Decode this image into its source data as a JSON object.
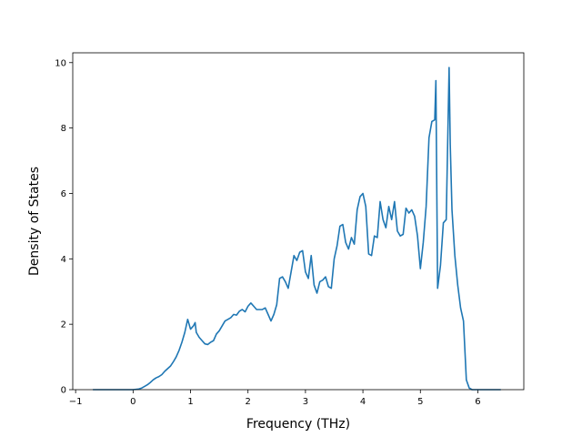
{
  "chart_data": {
    "type": "line",
    "title": "",
    "xlabel": "Frequency (THz)",
    "ylabel": "Density of States",
    "xlim": [
      -1.05,
      6.8
    ],
    "ylim": [
      0,
      10.3
    ],
    "xticks": [
      -1,
      0,
      1,
      2,
      3,
      4,
      5,
      6
    ],
    "yticks": [
      0,
      2,
      4,
      6,
      8,
      10
    ],
    "grid": false,
    "legend": "none",
    "line_color": "#1f77b4",
    "series": [
      {
        "name": "",
        "x": [
          -0.7,
          -0.5,
          -0.3,
          -0.1,
          0.0,
          0.1,
          0.15,
          0.2,
          0.25,
          0.3,
          0.35,
          0.4,
          0.45,
          0.5,
          0.55,
          0.6,
          0.65,
          0.7,
          0.75,
          0.8,
          0.85,
          0.9,
          0.95,
          1.0,
          1.05,
          1.08,
          1.1,
          1.15,
          1.2,
          1.25,
          1.3,
          1.35,
          1.4,
          1.45,
          1.5,
          1.55,
          1.6,
          1.65,
          1.7,
          1.75,
          1.8,
          1.85,
          1.9,
          1.95,
          2.0,
          2.05,
          2.1,
          2.15,
          2.2,
          2.25,
          2.3,
          2.35,
          2.4,
          2.45,
          2.5,
          2.55,
          2.6,
          2.65,
          2.7,
          2.75,
          2.8,
          2.85,
          2.9,
          2.95,
          3.0,
          3.05,
          3.1,
          3.15,
          3.2,
          3.25,
          3.3,
          3.35,
          3.4,
          3.45,
          3.5,
          3.55,
          3.6,
          3.65,
          3.7,
          3.75,
          3.8,
          3.85,
          3.9,
          3.95,
          4.0,
          4.05,
          4.1,
          4.15,
          4.2,
          4.25,
          4.3,
          4.35,
          4.4,
          4.45,
          4.5,
          4.55,
          4.6,
          4.65,
          4.7,
          4.75,
          4.8,
          4.85,
          4.9,
          4.95,
          5.0,
          5.05,
          5.1,
          5.15,
          5.2,
          5.25,
          5.27,
          5.3,
          5.35,
          5.4,
          5.45,
          5.5,
          5.52,
          5.55,
          5.6,
          5.65,
          5.7,
          5.75,
          5.8,
          5.85,
          5.9,
          6.0,
          6.2,
          6.4
        ],
        "values": [
          0.0,
          0.0,
          0.0,
          0.0,
          0.0,
          0.02,
          0.05,
          0.1,
          0.15,
          0.22,
          0.3,
          0.36,
          0.4,
          0.46,
          0.56,
          0.64,
          0.72,
          0.85,
          1.0,
          1.2,
          1.45,
          1.75,
          2.15,
          1.85,
          1.95,
          2.05,
          1.75,
          1.6,
          1.5,
          1.4,
          1.38,
          1.45,
          1.5,
          1.7,
          1.8,
          1.95,
          2.1,
          2.15,
          2.2,
          2.3,
          2.28,
          2.4,
          2.45,
          2.38,
          2.55,
          2.65,
          2.55,
          2.45,
          2.45,
          2.45,
          2.5,
          2.3,
          2.1,
          2.3,
          2.6,
          3.4,
          3.45,
          3.3,
          3.1,
          3.6,
          4.1,
          3.95,
          4.2,
          4.25,
          3.6,
          3.4,
          4.1,
          3.2,
          2.95,
          3.3,
          3.35,
          3.45,
          3.15,
          3.1,
          4.0,
          4.4,
          5.0,
          5.05,
          4.5,
          4.3,
          4.65,
          4.45,
          5.5,
          5.9,
          6.0,
          5.6,
          4.15,
          4.1,
          4.7,
          4.65,
          5.75,
          5.2,
          4.95,
          5.6,
          5.2,
          5.75,
          4.85,
          4.7,
          4.75,
          5.55,
          5.4,
          5.5,
          5.3,
          4.7,
          3.7,
          4.5,
          5.6,
          7.7,
          8.2,
          8.25,
          9.45,
          3.1,
          3.8,
          5.1,
          5.2,
          9.85,
          7.5,
          5.5,
          4.1,
          3.2,
          2.5,
          2.1,
          0.3,
          0.05,
          0.0,
          0.0,
          0.0,
          0.0
        ]
      }
    ]
  }
}
